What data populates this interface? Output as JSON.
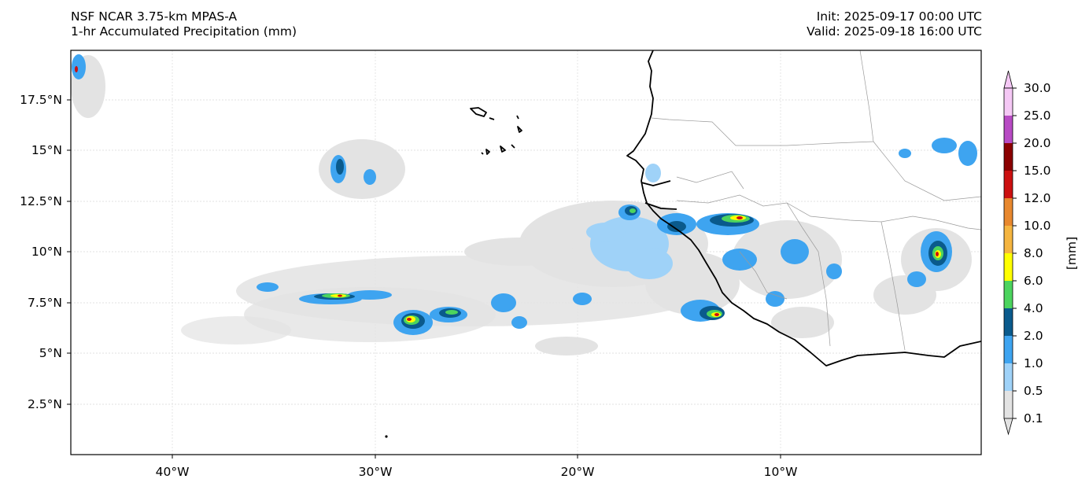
{
  "header": {
    "title_line1": "NSF NCAR 3.75-km MPAS-A",
    "title_line2": "1-hr Accumulated Precipitation (mm)",
    "init_line": "Init: 2025-09-17 00:00 UTC",
    "valid_line": "Valid: 2025-09-18 16:00 UTC"
  },
  "map": {
    "lat_ticks": [
      "17.5°N",
      "15°N",
      "12.5°N",
      "10°N",
      "7.5°N",
      "5°N",
      "2.5°N"
    ],
    "lon_ticks": [
      "40°W",
      "30°W",
      "20°W",
      "10°W"
    ],
    "gridlines": true
  },
  "colorbar": {
    "label": "[mm]",
    "ticks": [
      "30.0",
      "25.0",
      "20.0",
      "15.0",
      "12.0",
      "10.0",
      "8.0",
      "6.0",
      "4.0",
      "2.0",
      "1.0",
      "0.5",
      "0.1"
    ],
    "colors_top_to_bottom": [
      "#f5c8f5",
      "#b84bc4",
      "#8b0000",
      "#cc1010",
      "#e8882e",
      "#f5b540",
      "#ffff00",
      "#4cd45e",
      "#0a5a8c",
      "#3ea4f0",
      "#9fd2f8",
      "#e3e3e3"
    ],
    "extend": "both"
  }
}
